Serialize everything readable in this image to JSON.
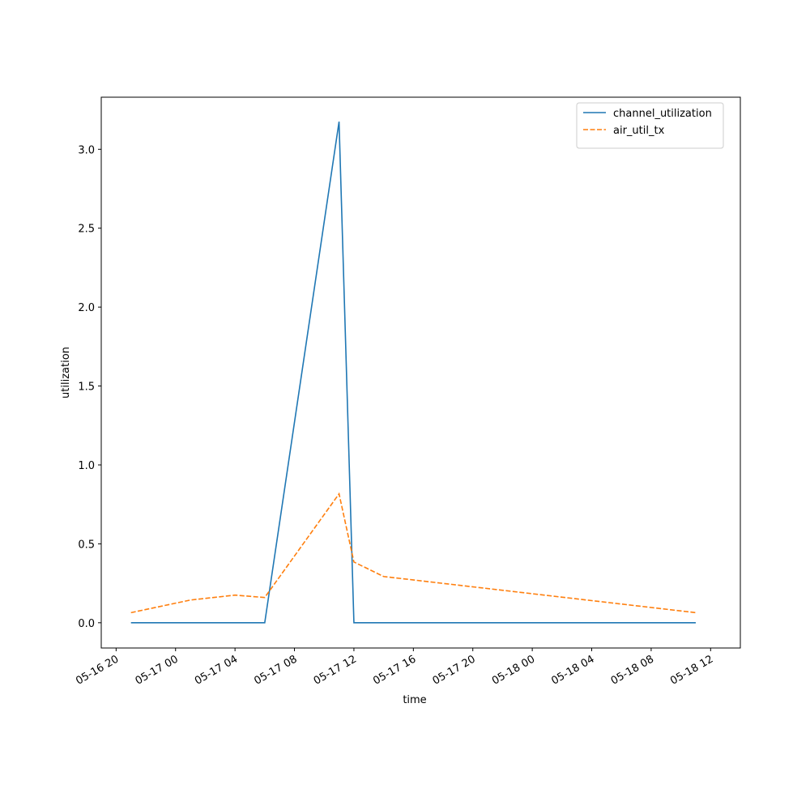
{
  "chart_data": {
    "type": "line",
    "x_label": "time",
    "y_label": "utilization",
    "x": [
      "05-16 21",
      "05-17 01",
      "05-17 04",
      "05-17 06",
      "05-17 11",
      "05-17 12",
      "05-17 14",
      "05-18 11"
    ],
    "series": [
      {
        "name": "channel_utilization",
        "color": "#1f77b4",
        "dash": "solid",
        "values": [
          0,
          0,
          0,
          0,
          3.175,
          0,
          0,
          0
        ]
      },
      {
        "name": "air_util_tx",
        "color": "#ff7f0e",
        "dash": "dashed",
        "values": [
          0.064,
          0.144,
          0.175,
          0.16,
          0.817,
          0.385,
          0.293,
          0.064
        ]
      }
    ],
    "xlim": [
      "05-16 19",
      "05-18 14"
    ],
    "xticks": [
      "05-16 20",
      "05-17 00",
      "05-17 04",
      "05-17 08",
      "05-17 12",
      "05-17 16",
      "05-17 20",
      "05-18 00",
      "05-18 04",
      "05-18 08",
      "05-18 12"
    ],
    "ylim": [
      -0.16,
      3.33
    ],
    "yticks": [
      {
        "value": 0,
        "label": "0.0"
      },
      0.5,
      {
        "value": 1,
        "label": "1.0"
      },
      1.5,
      {
        "value": 2,
        "label": "2.0"
      },
      2.5,
      {
        "value": 3,
        "label": "3.0"
      }
    ],
    "legend": "upper right",
    "grid": false
  }
}
